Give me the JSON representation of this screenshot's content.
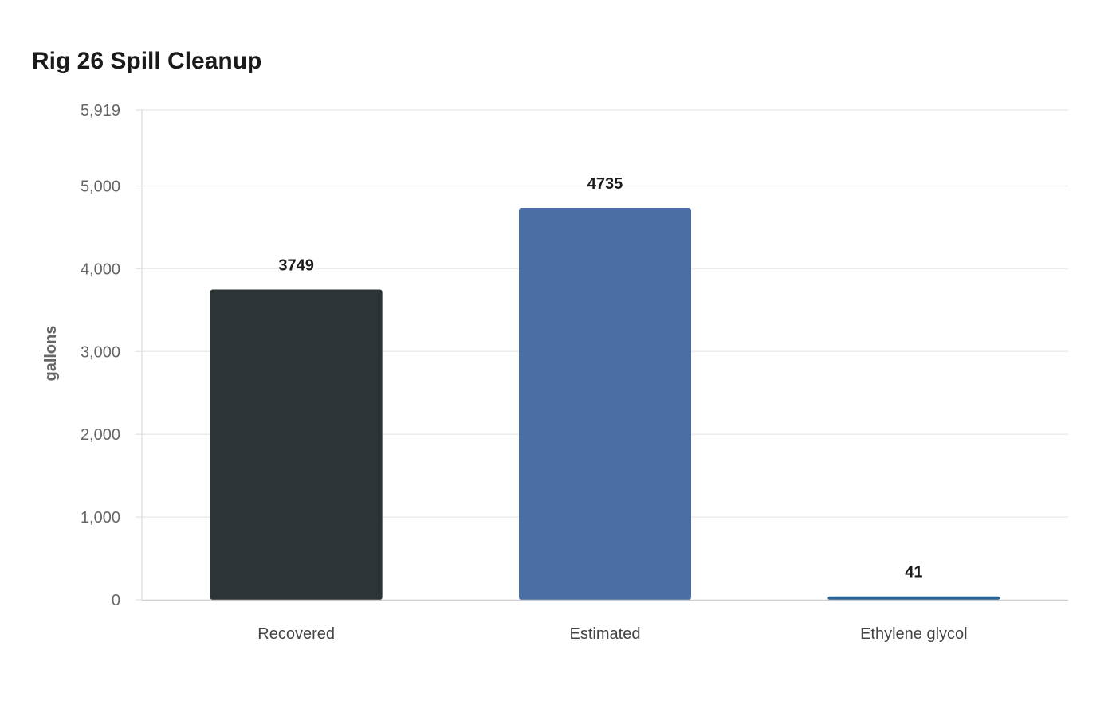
{
  "chart_data": {
    "type": "bar",
    "title": "Rig 26 Spill Cleanup",
    "xlabel": "",
    "ylabel": "gallons",
    "categories": [
      "Recovered",
      "Estimated",
      "Ethylene glycol"
    ],
    "values": [
      3749,
      4735,
      41
    ],
    "colors": [
      "#2d3436",
      "#4a6fa5",
      "#2a6496"
    ],
    "ylim": [
      0,
      5919
    ],
    "yticks": [
      0,
      1000,
      2000,
      3000,
      4000,
      5000,
      5919
    ],
    "ytick_labels": [
      "0",
      "1,000",
      "2,000",
      "3,000",
      "4,000",
      "5,000",
      "5,919"
    ],
    "grid": true,
    "data_labels": [
      "3749",
      "4735",
      "41"
    ]
  }
}
